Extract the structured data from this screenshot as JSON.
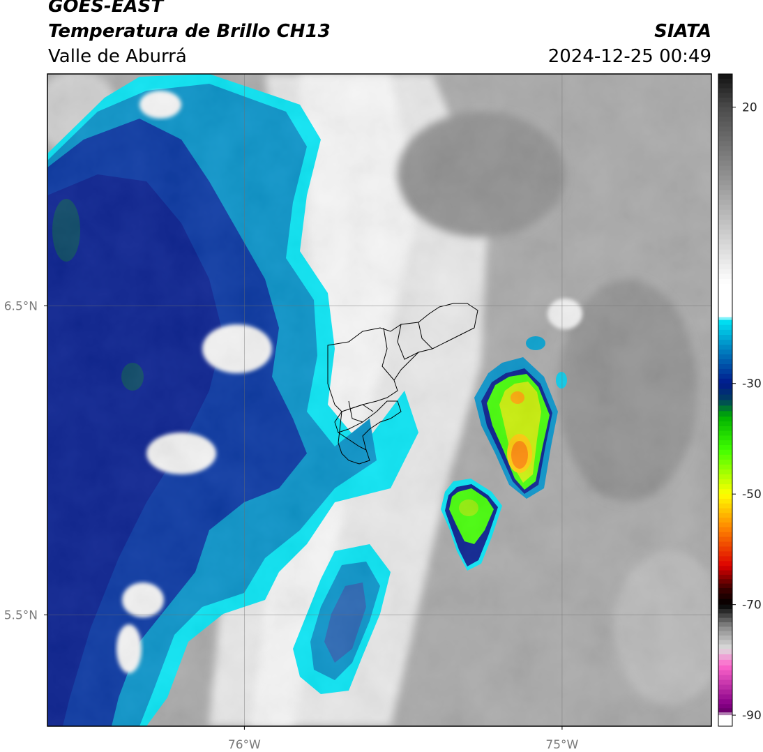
{
  "header": {
    "satellite": "GOES-EAST",
    "product": "Temperatura de Brillo CH13",
    "region": "Valle de Aburrá",
    "organization": "SIATA",
    "datetime": "2024-12-25 00:49"
  },
  "map": {
    "lon_range": [
      -76.62,
      -74.53
    ],
    "lat_range": [
      5.14,
      7.25
    ],
    "lat_ticks": [
      {
        "value": 6.5,
        "label": "6.5°N"
      },
      {
        "value": 5.5,
        "label": "5.5°N"
      }
    ],
    "lon_ticks": [
      {
        "value": -76.0,
        "label": "76°W"
      },
      {
        "value": -75.0,
        "label": "75°W"
      }
    ],
    "gridlines": true
  },
  "colorbar": {
    "range": [
      -92,
      26
    ],
    "ticks": [
      {
        "value": 20,
        "label": "20"
      },
      {
        "value": -30,
        "label": "-30"
      },
      {
        "value": -50,
        "label": "-50"
      },
      {
        "value": -70,
        "label": "-70"
      },
      {
        "value": -90,
        "label": "-90"
      }
    ],
    "stops": [
      {
        "value": 26,
        "color": "#111111"
      },
      {
        "value": 20,
        "color": "#4a4a4a"
      },
      {
        "value": 5,
        "color": "#a0a0a0"
      },
      {
        "value": -12,
        "color": "#ffffff"
      },
      {
        "value": -18,
        "color": "#ffffff"
      },
      {
        "value": -18.5,
        "color": "#00e5f5"
      },
      {
        "value": -23,
        "color": "#0090c8"
      },
      {
        "value": -30,
        "color": "#00188c"
      },
      {
        "value": -33,
        "color": "#004060"
      },
      {
        "value": -36,
        "color": "#00b000"
      },
      {
        "value": -42,
        "color": "#40ff00"
      },
      {
        "value": -50,
        "color": "#ffff00"
      },
      {
        "value": -56,
        "color": "#ff8800"
      },
      {
        "value": -63,
        "color": "#dd0000"
      },
      {
        "value": -67,
        "color": "#400000"
      },
      {
        "value": -70,
        "color": "#000000"
      },
      {
        "value": -74,
        "color": "#888888"
      },
      {
        "value": -78,
        "color": "#dddddd"
      },
      {
        "value": -81,
        "color": "#ff66cc"
      },
      {
        "value": -88,
        "color": "#880088"
      },
      {
        "value": -89.5,
        "color": "#660066"
      },
      {
        "value": -90,
        "color": "#ffffff"
      },
      {
        "value": -92,
        "color": "#ffffff"
      }
    ]
  },
  "colors": {
    "warm_gray": "#a5a5a5",
    "cold_blue": "#00188c",
    "cyan_edge": "#00e5f5",
    "convective_green": "#40ff00",
    "convective_yellow": "#ffff00",
    "convective_orange": "#ff8800"
  }
}
